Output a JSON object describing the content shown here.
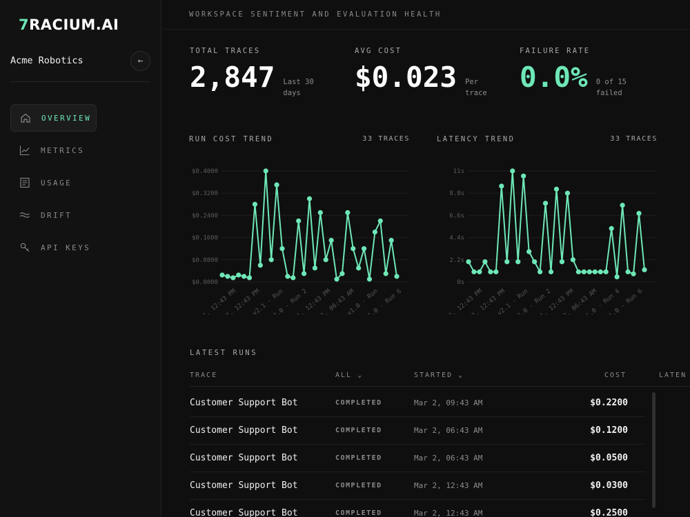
{
  "brand": {
    "logo_mark": "7",
    "logo_text": "RACIUM.AI"
  },
  "workspace": {
    "name": "Acme Robotics",
    "collapse_icon": "←"
  },
  "nav": [
    {
      "label": "OVERVIEW",
      "icon": "home-icon",
      "active": true
    },
    {
      "label": "METRICS",
      "icon": "chart-icon",
      "active": false
    },
    {
      "label": "USAGE",
      "icon": "document-icon",
      "active": false
    },
    {
      "label": "DRIFT",
      "icon": "waves-icon",
      "active": false
    },
    {
      "label": "API KEYS",
      "icon": "key-icon",
      "active": false
    }
  ],
  "header": {
    "title": "WORKSPACE SENTIMENT AND EVALUATION HEALTH"
  },
  "stats": {
    "total_traces": {
      "label": "TOTAL TRACES",
      "value": "2,847",
      "sub": "Last 30 days"
    },
    "avg_cost": {
      "label": "AVG COST",
      "value": "$0.023",
      "sub": "Per trace"
    },
    "failure_rate": {
      "label": "FAILURE RATE",
      "value": "0.0%",
      "sub": "0 of 15 failed"
    }
  },
  "colors": {
    "accent": "#6ee7b7",
    "background": "#0f0f0f",
    "sidebar": "#121212"
  },
  "chart_data": [
    {
      "type": "line",
      "title": "RUN COST TREND",
      "count_label": "33 TRACES",
      "yticks": [
        "$0.4000",
        "$0.3200",
        "$0.2400",
        "$0.1600",
        "$0.0800",
        "$0.0000"
      ],
      "ylim": [
        0,
        0.4
      ],
      "xticks": [
        "24, 12:43 PM",
        "b 27, 12:43 PM",
        "v2.1 - Run",
        "v2.0 - Run 2",
        "ar 1, 12:43 PM",
        "ar 2, 06:43 AM",
        "v1.0 - Run",
        "v1.0 - Run 6"
      ],
      "values": [
        0.025,
        0.02,
        0.015,
        0.025,
        0.02,
        0.015,
        0.28,
        0.06,
        0.4,
        0.08,
        0.35,
        0.12,
        0.02,
        0.015,
        0.22,
        0.03,
        0.3,
        0.05,
        0.25,
        0.08,
        0.15,
        0.01,
        0.03,
        0.25,
        0.12,
        0.05,
        0.12,
        0.01,
        0.18,
        0.22,
        0.03,
        0.15,
        0.02
      ]
    },
    {
      "type": "line",
      "title": "LATENCY TREND",
      "count_label": "33 TRACES",
      "yticks": [
        "11s",
        "8.8s",
        "6.6s",
        "4.4s",
        "2.2s",
        "0s"
      ],
      "ylim": [
        0,
        11
      ],
      "xticks": [
        "b 28, 12:43 PM",
        "b 27, 12:43 PM",
        "v2.1 - Run",
        "v2.0 - Run 2",
        "ar 1, 12:43 PM",
        "ar 2, 06:43 AM",
        "v1.0 - Run 4",
        "v1.0 - Run 6"
      ],
      "values": [
        2.0,
        1.0,
        1.0,
        2.0,
        1.0,
        1.0,
        9.5,
        2.0,
        11.0,
        2.0,
        10.5,
        3.0,
        2.0,
        1.0,
        7.8,
        1.0,
        9.2,
        2.0,
        8.8,
        2.2,
        1.0,
        1.0,
        1.0,
        1.0,
        1.0,
        1.0,
        5.3,
        0.5,
        7.6,
        1.0,
        0.8,
        6.8,
        1.2
      ]
    }
  ],
  "table": {
    "title": "LATEST RUNS",
    "columns": {
      "trace": "TRACE",
      "status": "ALL",
      "started": "STARTED",
      "cost": "COST",
      "latency": "LATEN"
    },
    "rows": [
      {
        "trace": "Customer Support Bot",
        "status": "COMPLETED",
        "started": "Mar 2, 09:43 AM",
        "cost": "$0.2200"
      },
      {
        "trace": "Customer Support Bot",
        "status": "COMPLETED",
        "started": "Mar 2, 06:43 AM",
        "cost": "$0.1200"
      },
      {
        "trace": "Customer Support Bot",
        "status": "COMPLETED",
        "started": "Mar 2, 06:43 AM",
        "cost": "$0.0500"
      },
      {
        "trace": "Customer Support Bot",
        "status": "COMPLETED",
        "started": "Mar 2, 12:43 AM",
        "cost": "$0.0300"
      },
      {
        "trace": "Customer Support Bot",
        "status": "COMPLETED",
        "started": "Mar 2, 12:43 AM",
        "cost": "$0.2500"
      }
    ]
  }
}
